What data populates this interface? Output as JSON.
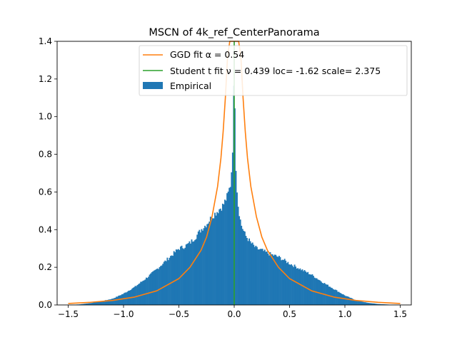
{
  "chart_data": {
    "type": "bar",
    "title": "MSCN of 4k_ref_CenterPanorama",
    "xlabel": "",
    "ylabel": "",
    "xlim": [
      -1.6,
      1.6
    ],
    "ylim": [
      0,
      1.4
    ],
    "x_ticks": [
      -1.5,
      -1.0,
      -0.5,
      0.0,
      0.5,
      1.0,
      1.5
    ],
    "x_tick_labels": [
      "−1.5",
      "−1.0",
      "−0.5",
      "0.0",
      "0.5",
      "1.0",
      "1.5"
    ],
    "y_ticks": [
      0.0,
      0.2,
      0.4,
      0.6,
      0.8,
      1.0,
      1.2,
      1.4
    ],
    "y_tick_labels": [
      "0.0",
      "0.2",
      "0.4",
      "0.6",
      "0.8",
      "1.0",
      "1.2",
      "1.4"
    ],
    "grid": false,
    "legend_position": "top-right",
    "legend": [
      {
        "label": "GGD fit α = 0.54",
        "kind": "line",
        "color": "#ff7f0e"
      },
      {
        "label": "Student t fit ν = 0.439 loc= -1.62 scale= 2.375",
        "kind": "line",
        "color": "#2ca02c"
      },
      {
        "label": "Empirical",
        "kind": "patch",
        "color": "#1f77b4"
      }
    ],
    "series": [
      {
        "name": "Empirical",
        "kind": "histogram",
        "color": "#1f77b4",
        "x": [
          -1.5,
          -1.4,
          -1.3,
          -1.2,
          -1.1,
          -1.0,
          -0.9,
          -0.8,
          -0.7,
          -0.6,
          -0.5,
          -0.45,
          -0.4,
          -0.35,
          -0.3,
          -0.25,
          -0.2,
          -0.15,
          -0.1,
          -0.06,
          -0.03,
          -0.01,
          0.0,
          0.01,
          0.03,
          0.06,
          0.1,
          0.15,
          0.2,
          0.25,
          0.3,
          0.35,
          0.4,
          0.5,
          0.6,
          0.7,
          0.8,
          0.9,
          1.0,
          1.1,
          1.2,
          1.3,
          1.4,
          1.5
        ],
        "y": [
          0.0,
          0.003,
          0.01,
          0.02,
          0.033,
          0.06,
          0.095,
          0.14,
          0.19,
          0.245,
          0.3,
          0.31,
          0.33,
          0.36,
          0.4,
          0.43,
          0.47,
          0.5,
          0.53,
          0.58,
          0.65,
          0.9,
          1.36,
          0.8,
          0.55,
          0.43,
          0.37,
          0.33,
          0.3,
          0.29,
          0.275,
          0.265,
          0.255,
          0.22,
          0.19,
          0.16,
          0.12,
          0.085,
          0.05,
          0.025,
          0.012,
          0.005,
          0.002,
          0.0
        ]
      },
      {
        "name": "GGD fit α = 0.54",
        "kind": "line",
        "color": "#ff7f0e",
        "x": [
          -1.5,
          -1.3,
          -1.1,
          -0.9,
          -0.7,
          -0.5,
          -0.4,
          -0.3,
          -0.25,
          -0.2,
          -0.15,
          -0.12,
          -0.1,
          -0.08,
          -0.06,
          -0.04,
          0.04,
          0.06,
          0.08,
          0.1,
          0.12,
          0.15,
          0.2,
          0.25,
          0.3,
          0.4,
          0.5,
          0.7,
          0.9,
          1.1,
          1.3,
          1.5
        ],
        "y": [
          0.008,
          0.014,
          0.024,
          0.042,
          0.075,
          0.14,
          0.2,
          0.29,
          0.36,
          0.47,
          0.63,
          0.78,
          0.92,
          1.1,
          1.32,
          1.4,
          1.4,
          1.32,
          1.1,
          0.92,
          0.78,
          0.63,
          0.47,
          0.36,
          0.29,
          0.2,
          0.14,
          0.075,
          0.042,
          0.024,
          0.014,
          0.008
        ]
      },
      {
        "name": "Student t fit ν = 0.439 loc= -1.62 scale= 2.375",
        "kind": "line",
        "color": "#2ca02c",
        "x": [
          0.0,
          0.0
        ],
        "y": [
          0.0,
          1.4
        ]
      }
    ]
  }
}
